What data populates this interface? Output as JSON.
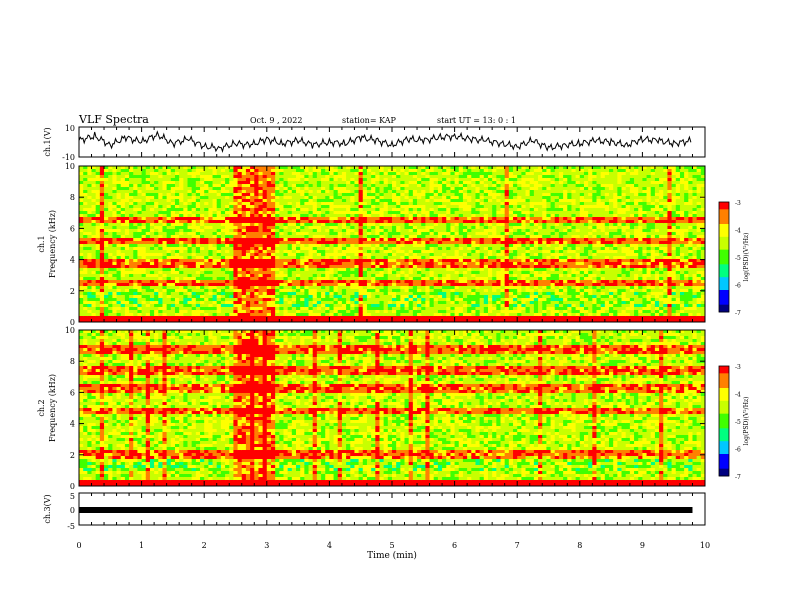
{
  "header": {
    "title": "VLF Spectra",
    "date": "Oct. 9 , 2022",
    "station": "station= KAP",
    "start": "start UT = 13: 0 : 1"
  },
  "colorbar": {
    "label": "log(PSD)(V²/Hz)",
    "ticks": [
      "-3",
      "-4",
      "-5",
      "-6",
      "-7"
    ]
  },
  "chart_data": [
    {
      "type": "line",
      "id": "ch1-waveform",
      "ylabel": "ch.1(V)",
      "ylim": [
        -10,
        10
      ],
      "yticks": [
        "10",
        "-10"
      ],
      "xlim": [
        0,
        10
      ],
      "x": [
        0,
        0.25,
        0.5,
        0.75,
        1.0,
        1.25,
        1.5,
        1.75,
        2.0,
        2.25,
        2.5,
        2.75,
        3.0,
        3.25,
        3.5,
        3.75,
        4.0,
        4.25,
        4.5,
        4.75,
        5.0,
        5.25,
        5.5,
        5.75,
        6.0,
        6.25,
        6.5,
        6.75,
        7.0,
        7.25,
        7.5,
        7.75,
        8.0,
        8.25,
        8.5,
        8.75,
        9.0,
        9.25,
        9.5,
        9.8
      ],
      "y": [
        1,
        4,
        -2,
        3,
        0,
        5,
        -1,
        2,
        -3,
        -4,
        -1,
        -2,
        2,
        -1,
        1,
        -2,
        0,
        -1,
        3,
        1,
        -2,
        2,
        1,
        3,
        4,
        2,
        1,
        -1,
        -3,
        1,
        -4,
        -2,
        -1,
        1,
        0,
        -2,
        2,
        1,
        -1,
        1
      ]
    },
    {
      "type": "heatmap",
      "id": "ch1-spectrogram",
      "ylabel": "ch.1\nFrequency (kHz)",
      "ylim": [
        0,
        10
      ],
      "yticks": [
        "0",
        "2",
        "4",
        "6",
        "8",
        "10"
      ],
      "xlim": [
        0,
        10
      ],
      "colorbar_range": [
        -7,
        -3
      ],
      "bright_bands_khz": [
        0.2,
        2.5,
        3.7,
        5.2,
        6.5
      ],
      "burst_window_min": [
        2.5,
        3.1
      ]
    },
    {
      "type": "heatmap",
      "id": "ch2-spectrogram",
      "ylabel": "ch.2\nFrequency (kHz)",
      "ylim": [
        0,
        10
      ],
      "yticks": [
        "0",
        "2",
        "4",
        "6",
        "8",
        "10"
      ],
      "xlim": [
        0,
        10
      ],
      "colorbar_range": [
        -7,
        -3
      ],
      "bright_bands_khz": [
        0.2,
        2.0,
        4.8,
        6.2,
        7.4,
        8.8
      ],
      "burst_window_min": [
        2.5,
        3.1
      ]
    },
    {
      "type": "line",
      "id": "ch3-waveform",
      "ylabel": "ch.3(V)",
      "ylim": [
        -5,
        5
      ],
      "yticks": [
        "5",
        "0",
        "-5"
      ],
      "xlim": [
        0,
        10
      ],
      "x": [
        0,
        9.8
      ],
      "y": [
        0,
        0
      ]
    }
  ],
  "x_axis": {
    "label": "Time (min)",
    "ticks": [
      "0",
      "1",
      "2",
      "3",
      "4",
      "5",
      "6",
      "7",
      "8",
      "9",
      "10"
    ]
  },
  "colors": {
    "colormap": [
      "#000080",
      "#0000ff",
      "#00c8ff",
      "#00ff80",
      "#40ff00",
      "#c8ff00",
      "#ffff00",
      "#ff8000",
      "#ff0000"
    ]
  }
}
